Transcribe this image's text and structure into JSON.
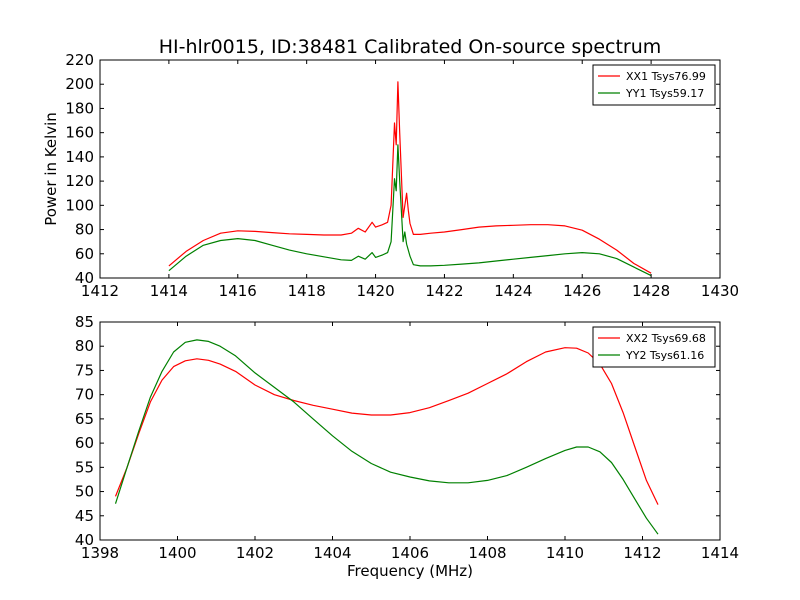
{
  "figure": {
    "title": "HI-hlr0015, ID:38481 Calibrated On-source spectrum"
  },
  "chart_data": [
    {
      "type": "line",
      "title": "HI-hlr0015, ID:38481 Calibrated On-source spectrum",
      "xlabel": "",
      "ylabel": "Power in Kelvin",
      "xlim": [
        1412,
        1430
      ],
      "ylim": [
        40,
        220
      ],
      "xticks": [
        1412,
        1414,
        1416,
        1418,
        1420,
        1422,
        1424,
        1426,
        1428,
        1430
      ],
      "yticks": [
        40,
        60,
        80,
        100,
        120,
        140,
        160,
        180,
        200,
        220
      ],
      "grid": false,
      "legend": "top-right",
      "series": [
        {
          "name": "XX1 Tsys76.99",
          "color": "#ff0000",
          "x": [
            1414,
            1414.5,
            1415,
            1415.5,
            1416,
            1416.5,
            1417,
            1417.5,
            1418,
            1418.5,
            1419,
            1419.3,
            1419.5,
            1419.7,
            1419.9,
            1420.0,
            1420.2,
            1420.35,
            1420.45,
            1420.55,
            1420.6,
            1420.65,
            1420.7,
            1420.8,
            1420.9,
            1420.95,
            1421.0,
            1421.1,
            1421.3,
            1421.6,
            1422,
            1422.5,
            1423,
            1423.5,
            1424,
            1424.5,
            1425,
            1425.5,
            1426,
            1426.5,
            1427,
            1427.5,
            1428
          ],
          "values": [
            50,
            62,
            71,
            77,
            79,
            78.5,
            77.5,
            76.5,
            76,
            75.5,
            75.5,
            77,
            81,
            78,
            86,
            82,
            84,
            86,
            100,
            168,
            150,
            202,
            160,
            90,
            110,
            96,
            85,
            76,
            76,
            77,
            78,
            80,
            82,
            83,
            83.5,
            84,
            84,
            83,
            79.5,
            72,
            63,
            52,
            44
          ]
        },
        {
          "name": "YY1 Tsys59.17",
          "color": "#008000",
          "x": [
            1414,
            1414.5,
            1415,
            1415.5,
            1416,
            1416.5,
            1417,
            1417.5,
            1418,
            1418.5,
            1419,
            1419.3,
            1419.5,
            1419.7,
            1419.9,
            1420.0,
            1420.2,
            1420.35,
            1420.45,
            1420.55,
            1420.6,
            1420.65,
            1420.7,
            1420.8,
            1420.85,
            1420.9,
            1421.0,
            1421.1,
            1421.3,
            1421.6,
            1422,
            1422.5,
            1423,
            1423.5,
            1424,
            1424.5,
            1425,
            1425.5,
            1426,
            1426.5,
            1427,
            1427.5,
            1428
          ],
          "values": [
            46,
            58,
            67,
            71,
            72.5,
            71,
            67,
            63,
            60,
            57.5,
            55,
            54.5,
            58,
            55.5,
            61,
            57,
            59,
            61,
            70,
            122,
            112,
            150,
            120,
            70,
            78,
            68,
            58,
            51,
            50,
            50,
            50.5,
            51.5,
            52.5,
            54,
            55.5,
            57,
            58.5,
            60,
            61,
            60,
            56,
            49,
            42
          ]
        }
      ]
    },
    {
      "type": "line",
      "title": "",
      "xlabel": "Frequency (MHz)",
      "ylabel": "",
      "xlim": [
        1398,
        1414
      ],
      "ylim": [
        40,
        85
      ],
      "xticks": [
        1398,
        1400,
        1402,
        1404,
        1406,
        1408,
        1410,
        1412,
        1414
      ],
      "yticks": [
        40,
        45,
        50,
        55,
        60,
        65,
        70,
        75,
        80,
        85
      ],
      "grid": false,
      "legend": "top-right",
      "series": [
        {
          "name": "XX2 Tsys69.68",
          "color": "#ff0000",
          "x": [
            1398.4,
            1398.7,
            1399,
            1399.3,
            1399.6,
            1399.9,
            1400.2,
            1400.5,
            1400.8,
            1401.1,
            1401.5,
            1402,
            1402.5,
            1403,
            1403.5,
            1404,
            1404.5,
            1405,
            1405.5,
            1406,
            1406.5,
            1407,
            1407.5,
            1408,
            1408.5,
            1409,
            1409.5,
            1410,
            1410.3,
            1410.6,
            1410.9,
            1411.2,
            1411.5,
            1411.8,
            1412.1,
            1412.4
          ],
          "values": [
            49,
            55,
            62,
            68.5,
            73,
            75.8,
            77,
            77.4,
            77.1,
            76.3,
            74.8,
            72,
            70,
            68.8,
            67.8,
            67,
            66.2,
            65.8,
            65.8,
            66.3,
            67.3,
            68.8,
            70.3,
            72.3,
            74.3,
            76.8,
            78.8,
            79.7,
            79.6,
            78.6,
            76.3,
            72.3,
            66.3,
            59.3,
            52.3,
            47.3
          ]
        },
        {
          "name": "YY2 Tsys61.16",
          "color": "#008000",
          "x": [
            1398.4,
            1398.7,
            1399,
            1399.3,
            1399.6,
            1399.9,
            1400.2,
            1400.5,
            1400.8,
            1401.1,
            1401.5,
            1402,
            1402.5,
            1403,
            1403.5,
            1404,
            1404.5,
            1405,
            1405.5,
            1406,
            1406.5,
            1407,
            1407.5,
            1408,
            1408.5,
            1409,
            1409.5,
            1410,
            1410.3,
            1410.6,
            1410.9,
            1411.2,
            1411.5,
            1411.8,
            1412.1,
            1412.4
          ],
          "values": [
            47.5,
            55,
            62.5,
            69.5,
            74.8,
            78.8,
            80.8,
            81.3,
            81,
            80,
            78,
            74.5,
            71.5,
            68.5,
            65,
            61.5,
            58.3,
            55.8,
            54,
            53,
            52.2,
            51.8,
            51.8,
            52.3,
            53.3,
            55,
            56.8,
            58.5,
            59.2,
            59.2,
            58.2,
            56,
            52.5,
            48.5,
            44.5,
            41.2
          ]
        }
      ]
    }
  ]
}
